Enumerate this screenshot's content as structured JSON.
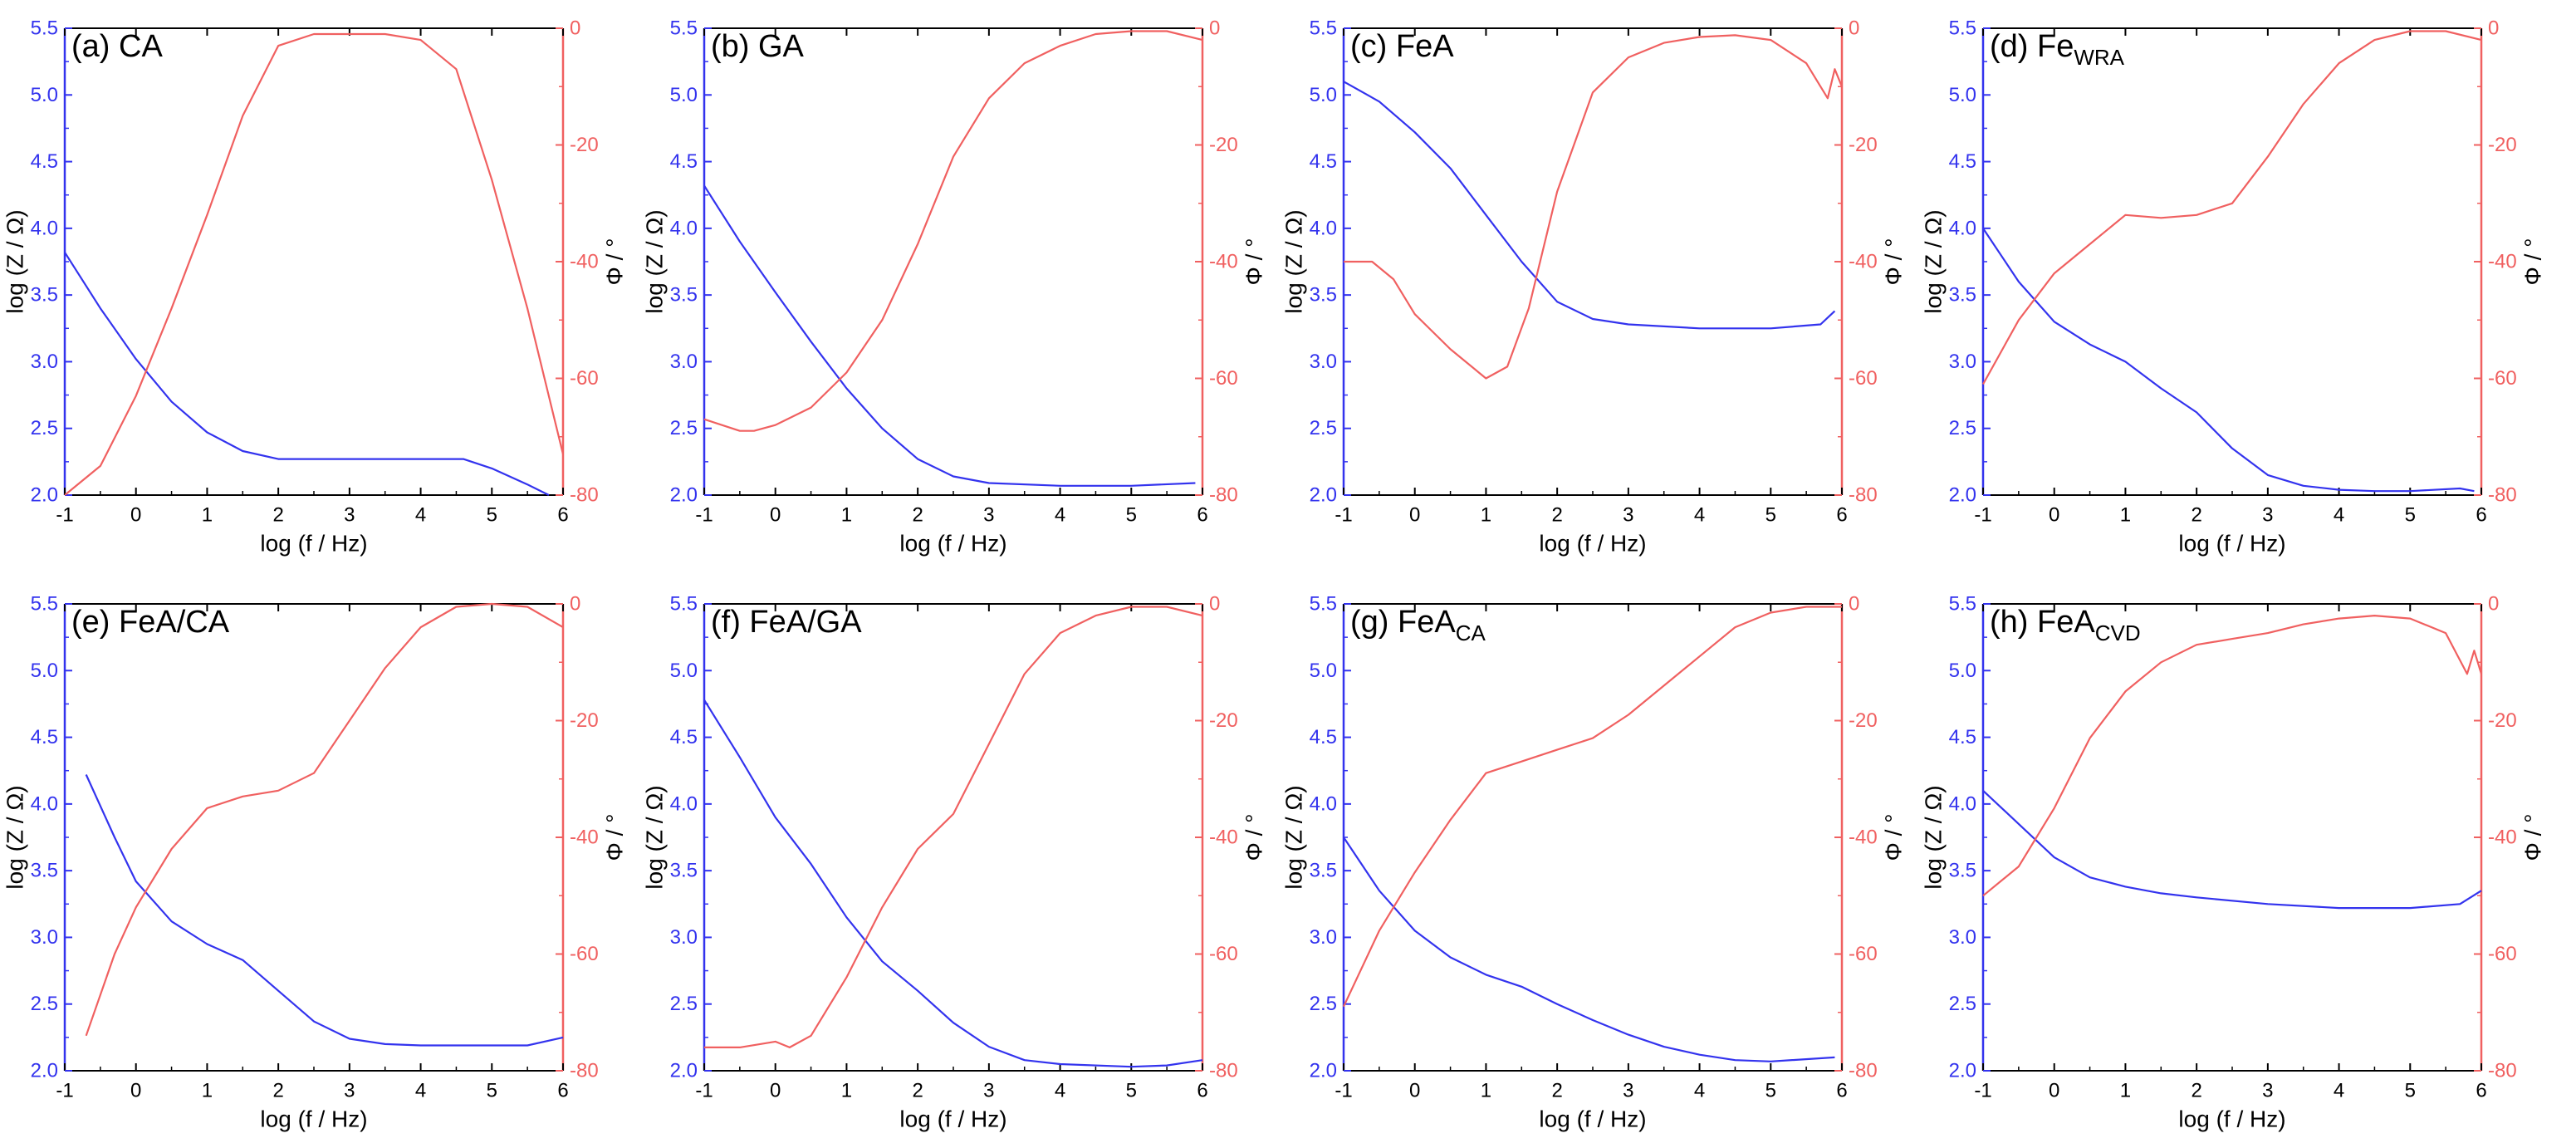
{
  "colors": {
    "impedance": "#3333ee",
    "phase": "#f06060",
    "axis": "#000000"
  },
  "x_axis_label": "log (f / Hz)",
  "y_left_label": "log (Z / Ω)",
  "y_right_label": "Φ / °",
  "chart_data": [
    {
      "type": "line",
      "title": "(a) CA",
      "title_main": "(a) CA",
      "title_sub": "",
      "xlim": [
        -1,
        6
      ],
      "x_ticks": [
        -1,
        0,
        1,
        2,
        3,
        4,
        5,
        6
      ],
      "ylim_left": [
        2.0,
        5.5
      ],
      "ylim_right": [
        -80,
        0
      ],
      "series": [
        {
          "name": "log Z",
          "axis": "left",
          "x": [
            -1,
            -0.5,
            0,
            0.5,
            1,
            1.5,
            2,
            3,
            4,
            4.6,
            5,
            5.5,
            5.8
          ],
          "y": [
            3.82,
            3.4,
            3.02,
            2.7,
            2.47,
            2.33,
            2.27,
            2.27,
            2.27,
            2.27,
            2.2,
            2.08,
            2.0
          ]
        },
        {
          "name": "Φ",
          "axis": "right",
          "x": [
            -1,
            -0.5,
            0,
            0.5,
            1,
            1.5,
            2,
            2.5,
            3,
            3.5,
            4,
            4.5,
            5,
            5.5,
            6
          ],
          "y": [
            -80,
            -75,
            -63,
            -48,
            -32,
            -15,
            -3,
            -1,
            -1,
            -1,
            -2,
            -7,
            -26,
            -48,
            -73
          ]
        }
      ]
    },
    {
      "type": "line",
      "title": "(b) GA",
      "title_main": "(b) GA",
      "title_sub": "",
      "xlim": [
        -1,
        6
      ],
      "x_ticks": [
        -1,
        0,
        1,
        2,
        3,
        4,
        5,
        6
      ],
      "ylim_left": [
        2.0,
        5.5
      ],
      "ylim_right": [
        -80,
        0
      ],
      "series": [
        {
          "name": "log Z",
          "axis": "left",
          "x": [
            -1,
            -0.5,
            0,
            0.5,
            1,
            1.5,
            2,
            2.5,
            3,
            4,
            5,
            5.9
          ],
          "y": [
            4.32,
            3.9,
            3.52,
            3.15,
            2.8,
            2.5,
            2.27,
            2.14,
            2.09,
            2.07,
            2.07,
            2.09
          ]
        },
        {
          "name": "Φ",
          "axis": "right",
          "x": [
            -1,
            -0.5,
            -0.3,
            0,
            0.5,
            1,
            1.5,
            2,
            2.5,
            3,
            3.5,
            4,
            4.5,
            5,
            5.5,
            6
          ],
          "y": [
            -67,
            -69,
            -69,
            -68,
            -65,
            -59,
            -50,
            -37,
            -22,
            -12,
            -6,
            -3,
            -1,
            -0.5,
            -0.5,
            -2
          ]
        }
      ]
    },
    {
      "type": "line",
      "title": "(c) FeA",
      "title_main": "(c) FeA",
      "title_sub": "",
      "xlim": [
        -1,
        6
      ],
      "x_ticks": [
        -1,
        0,
        1,
        2,
        3,
        4,
        5,
        6
      ],
      "ylim_left": [
        2.0,
        5.5
      ],
      "ylim_right": [
        -80,
        0
      ],
      "series": [
        {
          "name": "log Z",
          "axis": "left",
          "x": [
            -1,
            -0.5,
            0,
            0.5,
            1,
            1.5,
            2,
            2.5,
            3,
            4,
            5,
            5.7,
            5.9
          ],
          "y": [
            5.1,
            4.95,
            4.72,
            4.45,
            4.1,
            3.75,
            3.45,
            3.32,
            3.28,
            3.25,
            3.25,
            3.28,
            3.38
          ]
        },
        {
          "name": "Φ",
          "axis": "right",
          "x": [
            -1,
            -0.6,
            -0.3,
            0,
            0.5,
            1,
            1.3,
            1.6,
            2,
            2.5,
            3,
            3.5,
            4,
            4.5,
            5,
            5.5,
            5.8,
            5.9,
            6
          ],
          "y": [
            -40,
            -40,
            -43,
            -49,
            -55,
            -60,
            -58,
            -48,
            -28,
            -11,
            -5,
            -2.5,
            -1.5,
            -1.2,
            -2,
            -6,
            -12,
            -7,
            -10
          ]
        }
      ]
    },
    {
      "type": "line",
      "title": "(d) FeWRA",
      "title_main": "(d) Fe",
      "title_sub": "WRA",
      "xlim": [
        -1,
        6
      ],
      "x_ticks": [
        -1,
        0,
        1,
        2,
        3,
        4,
        5,
        6
      ],
      "ylim_left": [
        2.0,
        5.5
      ],
      "ylim_right": [
        -80,
        0
      ],
      "series": [
        {
          "name": "log Z",
          "axis": "left",
          "x": [
            -1,
            -0.5,
            0,
            0.5,
            1,
            1.5,
            2,
            2.5,
            3,
            3.5,
            4,
            4.5,
            5,
            5.7,
            5.9
          ],
          "y": [
            4.0,
            3.6,
            3.3,
            3.13,
            3.0,
            2.8,
            2.62,
            2.35,
            2.15,
            2.07,
            2.04,
            2.03,
            2.03,
            2.05,
            2.03
          ]
        },
        {
          "name": "Φ",
          "axis": "right",
          "x": [
            -1,
            -0.5,
            0,
            0.5,
            1,
            1.5,
            2,
            2.5,
            3,
            3.5,
            4,
            4.5,
            5,
            5.5,
            6
          ],
          "y": [
            -61,
            -50,
            -42,
            -37,
            -32,
            -32.5,
            -32,
            -30,
            -22,
            -13,
            -6,
            -2,
            -0.5,
            -0.5,
            -2
          ]
        }
      ]
    },
    {
      "type": "line",
      "title": "(e) FeA/CA",
      "title_main": "(e) FeA/CA",
      "title_sub": "",
      "xlim": [
        -1,
        6
      ],
      "x_ticks": [
        -1,
        0,
        1,
        2,
        3,
        4,
        5,
        6
      ],
      "ylim_left": [
        2.0,
        5.5
      ],
      "ylim_right": [
        -80,
        0
      ],
      "series": [
        {
          "name": "log Z",
          "axis": "left",
          "x": [
            -0.7,
            -0.3,
            0,
            0.5,
            1,
            1.5,
            2,
            2.5,
            3,
            3.5,
            4,
            5,
            5.5,
            6
          ],
          "y": [
            4.22,
            3.75,
            3.42,
            3.12,
            2.95,
            2.83,
            2.6,
            2.37,
            2.24,
            2.2,
            2.19,
            2.19,
            2.19,
            2.25
          ]
        },
        {
          "name": "Φ",
          "axis": "right",
          "x": [
            -0.7,
            -0.3,
            0,
            0.5,
            1,
            1.5,
            2,
            2.5,
            3,
            3.5,
            4,
            4.5,
            5,
            5.5,
            6
          ],
          "y": [
            -74,
            -60,
            -52,
            -42,
            -35,
            -33,
            -32,
            -29,
            -20,
            -11,
            -4,
            -0.5,
            0,
            -0.5,
            -4
          ]
        }
      ]
    },
    {
      "type": "line",
      "title": "(f) FeA/GA",
      "title_main": "(f) FeA/GA",
      "title_sub": "",
      "xlim": [
        -1,
        6
      ],
      "x_ticks": [
        -1,
        0,
        1,
        2,
        3,
        4,
        5,
        6
      ],
      "ylim_left": [
        2.0,
        5.5
      ],
      "ylim_right": [
        -80,
        0
      ],
      "series": [
        {
          "name": "log Z",
          "axis": "left",
          "x": [
            -1,
            -0.5,
            0,
            0.5,
            1,
            1.5,
            2,
            2.5,
            3,
            3.5,
            4,
            5,
            5.5,
            6
          ],
          "y": [
            4.78,
            4.35,
            3.9,
            3.55,
            3.15,
            2.82,
            2.6,
            2.36,
            2.18,
            2.08,
            2.05,
            2.03,
            2.04,
            2.08
          ]
        },
        {
          "name": "Φ",
          "axis": "right",
          "x": [
            -1,
            -0.5,
            0,
            0.2,
            0.5,
            1,
            1.5,
            2,
            2.5,
            3,
            3.5,
            4,
            4.5,
            5,
            5.5,
            6
          ],
          "y": [
            -76,
            -76,
            -75,
            -76,
            -74,
            -64,
            -52,
            -42,
            -36,
            -24,
            -12,
            -5,
            -2,
            -0.5,
            -0.5,
            -2
          ]
        }
      ]
    },
    {
      "type": "line",
      "title": "(g) FeACA",
      "title_main": "(g) FeA",
      "title_sub": "CA",
      "xlim": [
        -1,
        6
      ],
      "x_ticks": [
        -1,
        0,
        1,
        2,
        3,
        4,
        5,
        6
      ],
      "ylim_left": [
        2.0,
        5.5
      ],
      "ylim_right": [
        -80,
        0
      ],
      "series": [
        {
          "name": "log Z",
          "axis": "left",
          "x": [
            -1,
            -0.5,
            0,
            0.5,
            1,
            1.5,
            2,
            2.5,
            3,
            3.5,
            4,
            4.5,
            5,
            5.9
          ],
          "y": [
            3.75,
            3.35,
            3.05,
            2.85,
            2.72,
            2.63,
            2.5,
            2.38,
            2.27,
            2.18,
            2.12,
            2.08,
            2.07,
            2.1
          ]
        },
        {
          "name": "Φ",
          "axis": "right",
          "x": [
            -1,
            -0.5,
            0,
            0.5,
            1,
            1.5,
            2,
            2.5,
            3,
            3.5,
            4,
            4.5,
            5,
            5.5,
            6
          ],
          "y": [
            -69,
            -56,
            -46,
            -37,
            -29,
            -27,
            -25,
            -23,
            -19,
            -14,
            -9,
            -4,
            -1.5,
            -0.5,
            -0.5
          ]
        }
      ]
    },
    {
      "type": "line",
      "title": "(h) FeACVD",
      "title_main": "(h) FeA",
      "title_sub": "CVD",
      "xlim": [
        -1,
        6
      ],
      "x_ticks": [
        -1,
        0,
        1,
        2,
        3,
        4,
        5,
        6
      ],
      "ylim_left": [
        2.0,
        5.5
      ],
      "ylim_right": [
        -80,
        0
      ],
      "series": [
        {
          "name": "log Z",
          "axis": "left",
          "x": [
            -1,
            -0.5,
            0,
            0.5,
            1,
            1.5,
            2,
            3,
            4,
            5,
            5.7,
            6
          ],
          "y": [
            4.1,
            3.85,
            3.6,
            3.45,
            3.38,
            3.33,
            3.3,
            3.25,
            3.22,
            3.22,
            3.25,
            3.35
          ]
        },
        {
          "name": "Φ",
          "axis": "right",
          "x": [
            -1,
            -0.5,
            0,
            0.5,
            1,
            1.5,
            2,
            2.5,
            3,
            3.5,
            4,
            4.5,
            5,
            5.5,
            5.8,
            5.9,
            6
          ],
          "y": [
            -50,
            -45,
            -35,
            -23,
            -15,
            -10,
            -7,
            -6,
            -5,
            -3.5,
            -2.5,
            -2,
            -2.5,
            -5,
            -12,
            -8,
            -12
          ]
        }
      ]
    }
  ]
}
